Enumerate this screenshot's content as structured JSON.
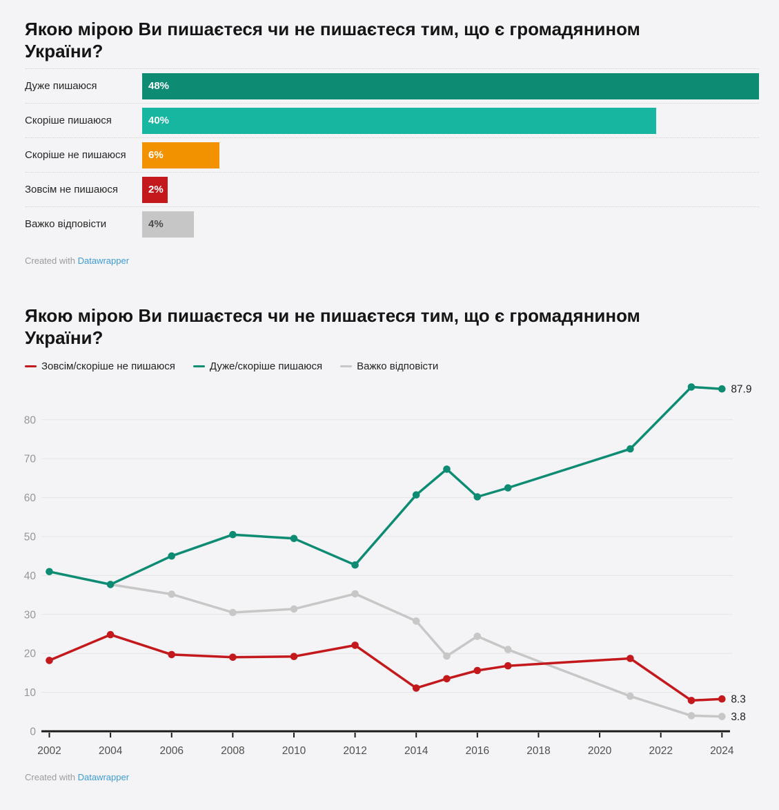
{
  "page": {
    "background": "#f4f4f6"
  },
  "chart1": {
    "title": "Якою мірою Ви пишаєтеся чи не пишаєтеся тим, що є громадянином України?",
    "footer": {
      "prefix": "Created with ",
      "link": "Datawrapper"
    }
  },
  "chart2": {
    "title": "Якою мірою Ви пишаєтеся чи не пишаєтеся тим, що є громадянином України?",
    "legend": [
      {
        "label": "Зовсім/скоріше не пишаюся",
        "color": "#c4191c"
      },
      {
        "label": "Дуже/скоріше пишаюся",
        "color": "#0d8c73"
      },
      {
        "label": "Важко відповісти",
        "color": "#c7c7c7"
      }
    ],
    "footer": {
      "prefix": "Created with ",
      "link": "Datawrapper"
    }
  },
  "chart_data": [
    {
      "type": "bar",
      "orientation": "horizontal",
      "title": "Якою мірою Ви пишаєтеся чи не пишаєтеся тим, що є громадянином України?",
      "categories": [
        "Дуже пишаюся",
        "Скоріше пишаюся",
        "Скоріше не пишаюся",
        "Зовсім не пишаюся",
        "Важко відповісти"
      ],
      "values": [
        48,
        40,
        6,
        2,
        4
      ],
      "value_labels": [
        "48%",
        "40%",
        "6%",
        "2%",
        "4%"
      ],
      "colors": [
        "#0d8c73",
        "#16b6a0",
        "#f39200",
        "#c4191c",
        "#c6c6c6"
      ],
      "value_label_dark": [
        false,
        false,
        false,
        false,
        true
      ],
      "xlim": [
        0,
        48
      ],
      "grid": false
    },
    {
      "type": "line",
      "title": "Якою мірою Ви пишаєтеся чи не пишаєтеся тим, що є громадянином України?",
      "xlim": [
        2002,
        2024
      ],
      "ylim": [
        0,
        88.5
      ],
      "x_ticks": [
        2002,
        2004,
        2006,
        2008,
        2010,
        2012,
        2014,
        2016,
        2018,
        2020,
        2022,
        2024
      ],
      "y_ticks": [
        0,
        10,
        20,
        30,
        40,
        50,
        60,
        70,
        80
      ],
      "grid": true,
      "legend_position": "top",
      "series": [
        {
          "name": "Важко відповісти",
          "color": "#c7c7c7",
          "x": [
            2004,
            2006,
            2008,
            2010,
            2012,
            2014,
            2015,
            2016,
            2017,
            2021,
            2023,
            2024
          ],
          "y": [
            37.7,
            35.2,
            30.5,
            31.4,
            35.3,
            28.3,
            19.3,
            24.4,
            21.0,
            9.0,
            4.0,
            3.8
          ],
          "end_label": "3.8"
        },
        {
          "name": "Зовсім/скоріше не пишаюся",
          "color": "#c4191c",
          "x": [
            2002,
            2004,
            2006,
            2008,
            2010,
            2012,
            2014,
            2015,
            2016,
            2017,
            2021,
            2023,
            2024
          ],
          "y": [
            18.2,
            24.8,
            19.7,
            19.0,
            19.2,
            22.1,
            11.1,
            13.5,
            15.6,
            16.8,
            18.7,
            7.9,
            8.3
          ],
          "end_label": "8.3"
        },
        {
          "name": "Дуже/скоріше пишаюся",
          "color": "#0d8c73",
          "x": [
            2002,
            2004,
            2006,
            2008,
            2010,
            2012,
            2014,
            2015,
            2016,
            2017,
            2021,
            2023,
            2024
          ],
          "y": [
            41.0,
            37.7,
            45.0,
            50.5,
            49.5,
            42.7,
            60.7,
            67.3,
            60.2,
            62.5,
            72.5,
            88.4,
            87.9
          ],
          "end_label": "87.9"
        }
      ]
    }
  ]
}
